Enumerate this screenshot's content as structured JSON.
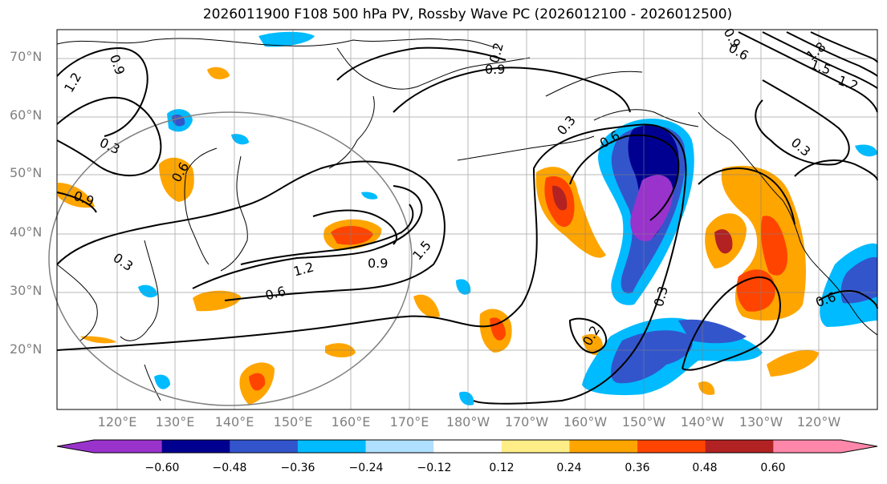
{
  "title": "2026011900 F108 500 hPa PV, Rossby Wave PC (2026012100 - 2026012500)",
  "lat_labels": [
    "70°N",
    "60°N",
    "50°N",
    "40°N",
    "30°N",
    "20°N"
  ],
  "lon_labels": [
    "120°E",
    "130°E",
    "140°E",
    "150°E",
    "160°E",
    "170°E",
    "180°W",
    "170°W",
    "160°W",
    "150°W",
    "140°W",
    "130°W",
    "120°W"
  ],
  "colorbar": {
    "colors": [
      "#9933cc",
      "#000090",
      "#3355cc",
      "#00bbff",
      "#b0e0ff",
      "#ffffff",
      "#ffee88",
      "#ffa500",
      "#ff4400",
      "#b22222",
      "#ff88aa"
    ],
    "tick_labels": [
      "−0.60",
      "−0.48",
      "−0.36",
      "−0.24",
      "−0.12",
      "0.12",
      "0.24",
      "0.36",
      "0.48",
      "0.60"
    ]
  },
  "contour_labels": [
    {
      "text": "0.9"
    },
    {
      "text": "1.2"
    },
    {
      "text": "0.3"
    },
    {
      "text": "0.6"
    },
    {
      "text": "0.9"
    },
    {
      "text": "0.3"
    },
    {
      "text": "1.2"
    },
    {
      "text": "0.9"
    },
    {
      "text": "1.5"
    },
    {
      "text": "0.6"
    },
    {
      "text": "0.2"
    },
    {
      "text": "0.9"
    },
    {
      "text": "0.3"
    },
    {
      "text": "0.6"
    },
    {
      "text": "0.3"
    },
    {
      "text": "0.2"
    },
    {
      "text": "0.9"
    },
    {
      "text": "0.6"
    },
    {
      "text": "1.8"
    },
    {
      "text": "1.5"
    },
    {
      "text": "1.2"
    },
    {
      "text": "0.3"
    },
    {
      "text": "0.6"
    }
  ]
}
